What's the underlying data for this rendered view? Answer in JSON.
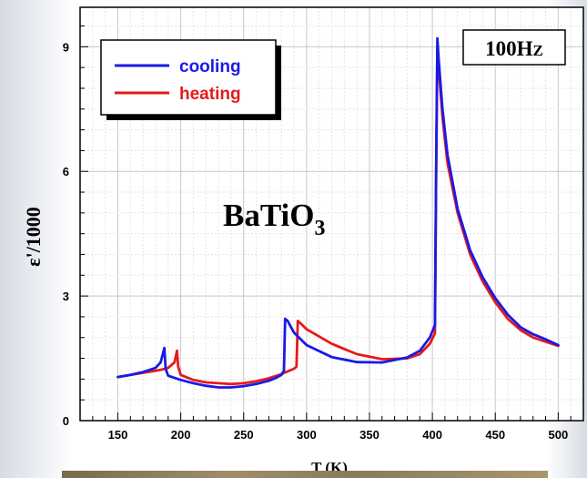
{
  "chart_data": {
    "type": "line",
    "xlabel": "T (K)",
    "ylabel": "ε'/1000",
    "xlim": [
      120,
      520
    ],
    "ylim": [
      0,
      9.95
    ],
    "xticks": [
      150,
      200,
      250,
      300,
      350,
      400,
      450,
      500
    ],
    "yticks": [
      0,
      3,
      6,
      9
    ],
    "grid": true,
    "legend_position": "top-left",
    "annotations": {
      "material": "BaTiO",
      "material_subscript": "3",
      "frequency_main": "100H",
      "frequency_small": "Z"
    },
    "series": [
      {
        "name": "cooling",
        "color": "#1a1ae6",
        "x": [
          150,
          160,
          170,
          180,
          184,
          187,
          188,
          190,
          200,
          210,
          220,
          230,
          240,
          250,
          260,
          270,
          275,
          280,
          282,
          283,
          285,
          290,
          300,
          320,
          340,
          360,
          380,
          390,
          398,
          402,
          403,
          404,
          405,
          408,
          412,
          420,
          430,
          440,
          450,
          460,
          470,
          480,
          490,
          500
        ],
        "y": [
          1.05,
          1.1,
          1.17,
          1.27,
          1.4,
          1.75,
          1.25,
          1.08,
          0.98,
          0.9,
          0.84,
          0.8,
          0.8,
          0.83,
          0.88,
          0.96,
          1.02,
          1.1,
          1.2,
          2.45,
          2.4,
          2.12,
          1.82,
          1.53,
          1.41,
          1.4,
          1.52,
          1.68,
          2.0,
          2.3,
          6.0,
          9.2,
          8.7,
          7.5,
          6.4,
          5.1,
          4.1,
          3.45,
          2.95,
          2.55,
          2.25,
          2.08,
          1.96,
          1.82
        ]
      },
      {
        "name": "heating",
        "color": "#e61a1a",
        "x": [
          150,
          160,
          170,
          180,
          185,
          190,
          195,
          197,
          198,
          200,
          210,
          220,
          230,
          240,
          250,
          260,
          270,
          280,
          290,
          292,
          293,
          295,
          300,
          320,
          340,
          360,
          380,
          390,
          398,
          402,
          403,
          404,
          405,
          408,
          412,
          420,
          430,
          440,
          450,
          460,
          470,
          480,
          490,
          500
        ],
        "y": [
          1.05,
          1.1,
          1.15,
          1.2,
          1.23,
          1.27,
          1.4,
          1.68,
          1.3,
          1.1,
          0.98,
          0.92,
          0.9,
          0.88,
          0.9,
          0.95,
          1.02,
          1.12,
          1.25,
          1.3,
          2.4,
          2.35,
          2.2,
          1.85,
          1.6,
          1.48,
          1.5,
          1.6,
          1.85,
          2.1,
          5.8,
          9.0,
          8.5,
          7.3,
          6.2,
          5.0,
          4.0,
          3.35,
          2.85,
          2.45,
          2.18,
          2.0,
          1.9,
          1.8
        ]
      }
    ]
  }
}
